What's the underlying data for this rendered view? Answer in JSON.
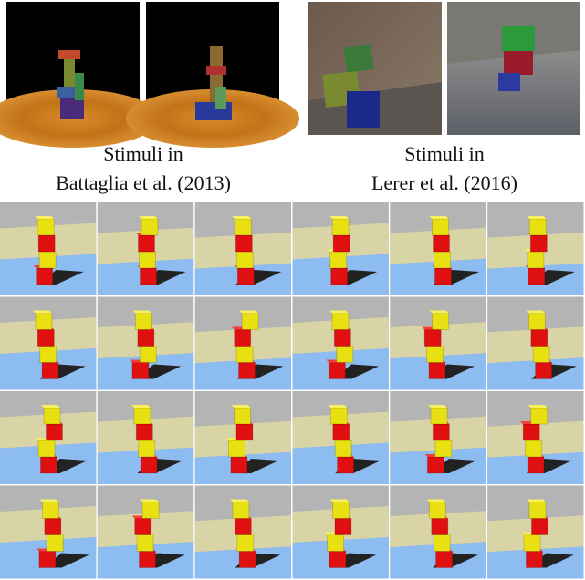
{
  "captions": [
    {
      "line1": "Stimuli in",
      "line2": "Battaglia et al. (2013)"
    },
    {
      "line1": "Stimuli in",
      "line2": "Lerer et al. (2016)"
    }
  ]
}
